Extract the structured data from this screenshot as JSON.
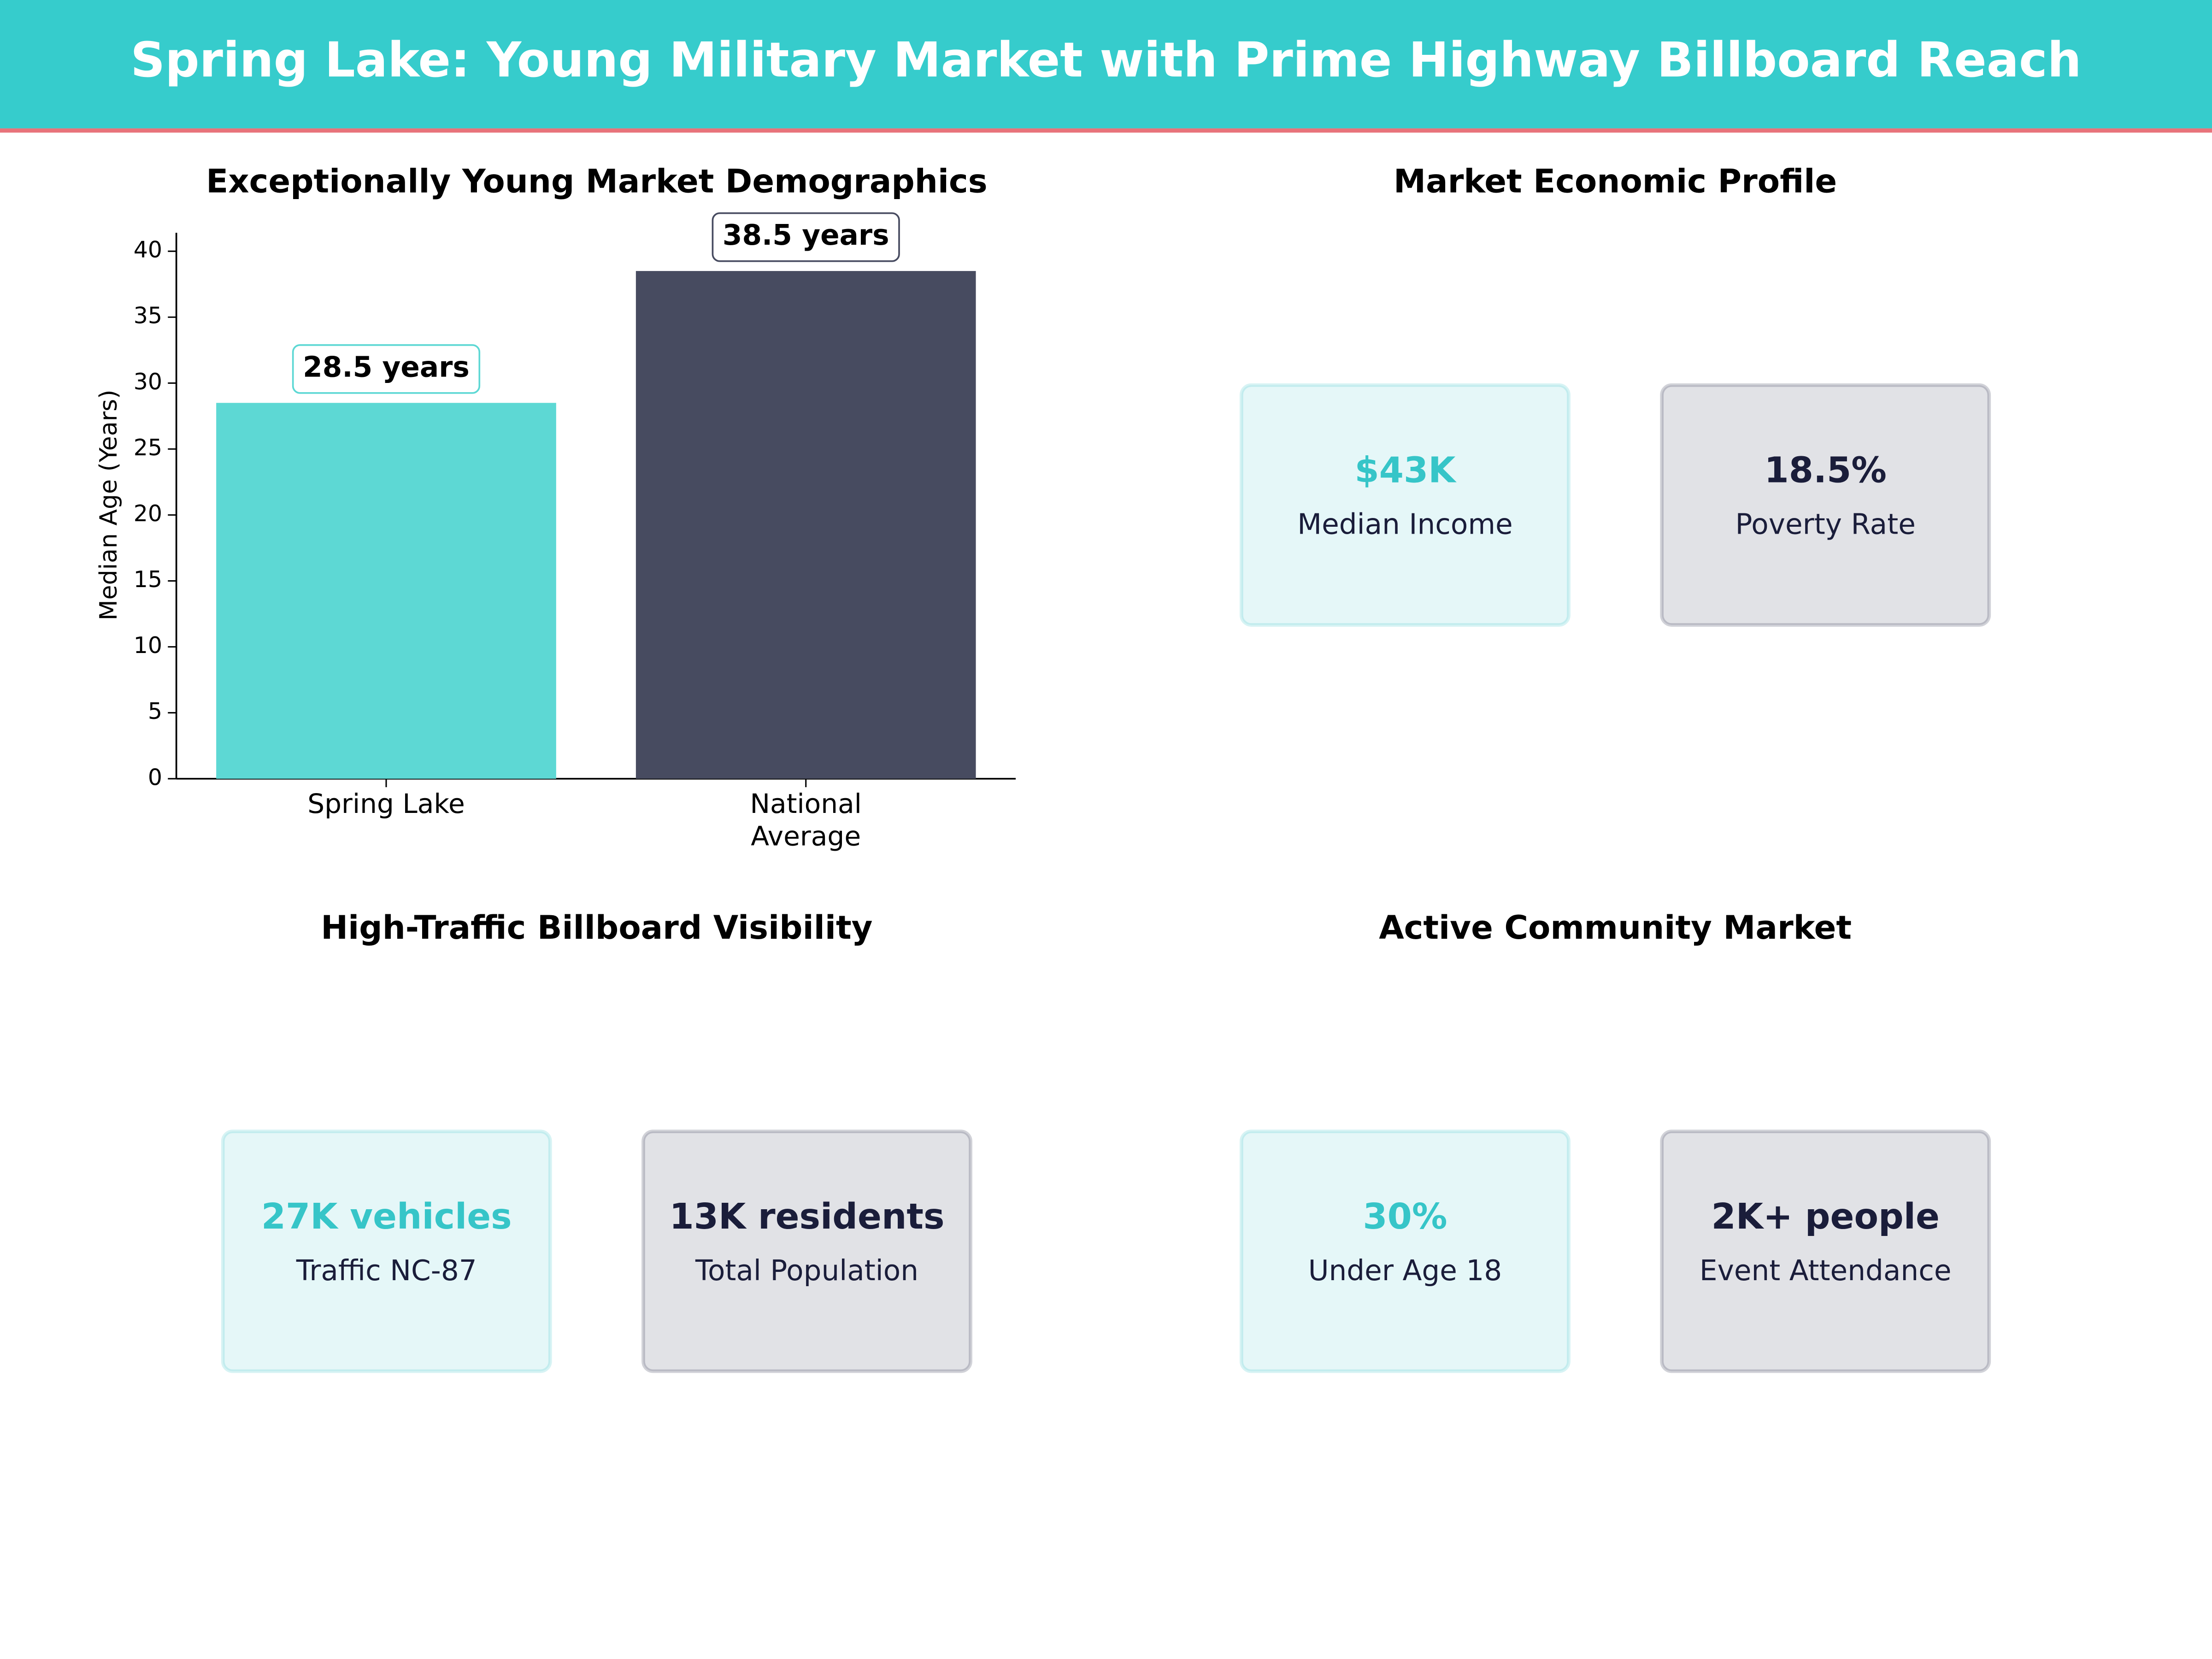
{
  "title": "Spring Lake: Young Military Market with Prime Highway Billboard Reach",
  "chart_data": {
    "type": "bar",
    "title": "Exceptionally Young Market Demographics",
    "categories": [
      "Spring Lake",
      "National\nAverage"
    ],
    "values": [
      28.5,
      38.5
    ],
    "value_labels": [
      "28.5 years",
      "38.5 years"
    ],
    "colors": [
      "#5dd8d4",
      "#474b60"
    ],
    "ylabel": "Median Age (Years)",
    "ylim": [
      0,
      41.4
    ],
    "yticks": [
      0,
      5,
      10,
      15,
      20,
      25,
      30,
      35,
      40
    ]
  },
  "panels": [
    {
      "title": "Market Economic Profile",
      "cards": [
        {
          "value": "$43K",
          "label": "Median Income",
          "color": "#36c5c8"
        },
        {
          "value": "18.5%",
          "label": "Poverty Rate",
          "color": "#1a1d3a"
        }
      ]
    },
    {
      "title": "High-Traffic Billboard Visibility",
      "cards": [
        {
          "value": "27K vehicles",
          "label": "Traffic NC-87",
          "color": "#36c5c8"
        },
        {
          "value": "13K residents",
          "label": "Total Population",
          "color": "#1a1d3a"
        }
      ]
    },
    {
      "title": "Active Community Market",
      "cards": [
        {
          "value": "30%",
          "label": "Under Age 18",
          "color": "#36c5c8"
        },
        {
          "value": "2K+ people",
          "label": "Event Attendance",
          "color": "#1a1d3a"
        }
      ]
    }
  ]
}
